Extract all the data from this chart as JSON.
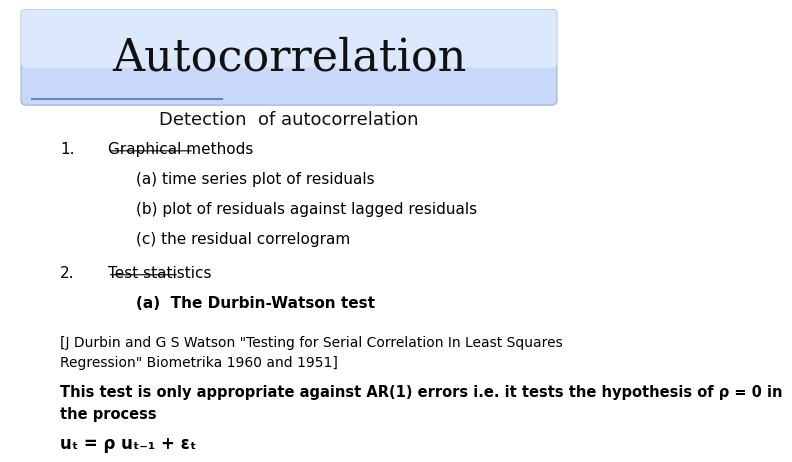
{
  "title": "Autocorrelation",
  "subtitle": "Detection  of autocorrelation",
  "bg_color": "#ffffff",
  "header_color": "#ccd8f5",
  "title_fontsize": 32,
  "subtitle_fontsize": 13,
  "body_fontsize": 11,
  "item1_label": "1.",
  "item1_text": "Graphical methods",
  "item1a": "(a) time series plot of residuals",
  "item1b": "(b) plot of residuals against lagged residuals",
  "item1c": "(c) the residual correlogram",
  "item2_label": "2.",
  "item2_text": "Test statistics",
  "item2a": "(a)  The Durbin-Watson test",
  "ref_line1": "[J Durbin and G S Watson \"Testing for Serial Correlation In Least Squares",
  "ref_line2": "Regression\" Biometrika 1960 and 1951]",
  "note_line1": "This test is only appropriate against AR(1) errors i.e. it tests the hypothesis of ρ = 0 in",
  "note_line2": "the process",
  "equation": "uₜ = ρ uₜ₋₁ + εₜ"
}
